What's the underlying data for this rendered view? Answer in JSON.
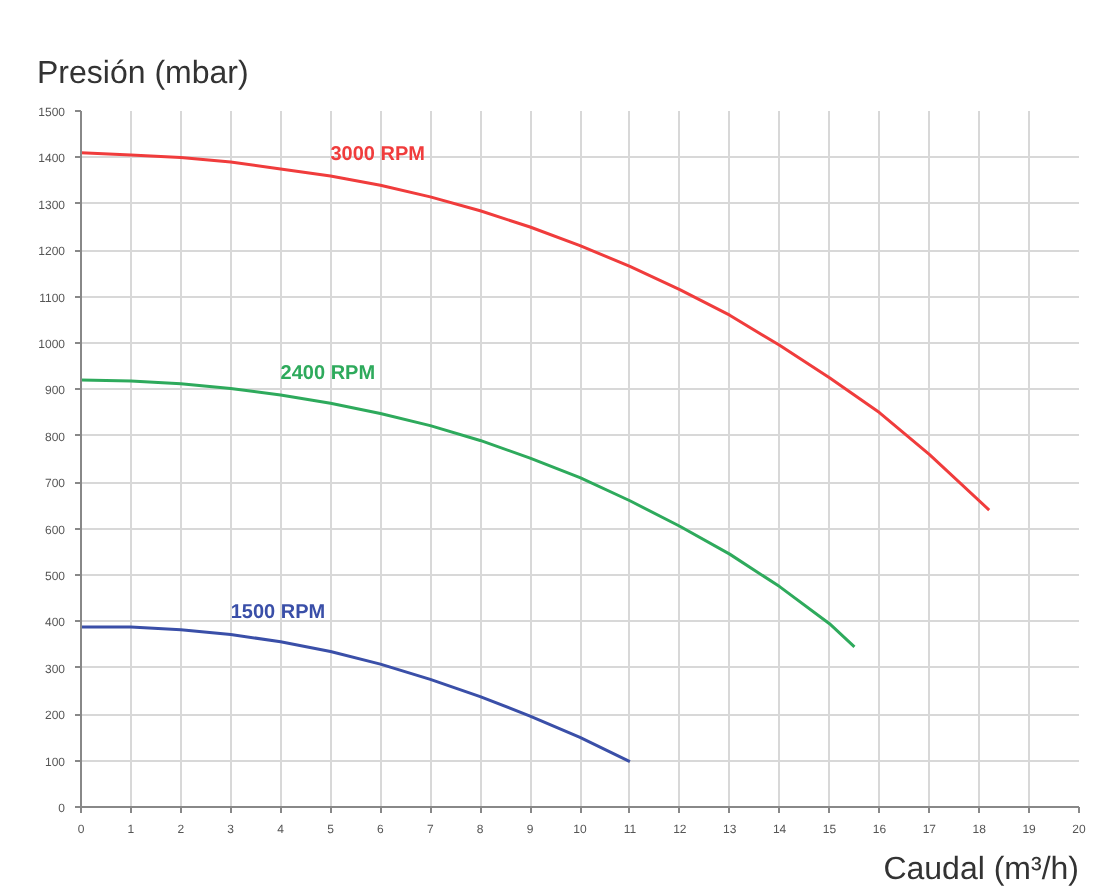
{
  "chart_data": {
    "type": "line",
    "title": "Presión (mbar)",
    "xlabel": "Caudal (m³/h)",
    "xlim": [
      0,
      20
    ],
    "ylim": [
      0,
      1500
    ],
    "xticks": [
      0,
      1,
      2,
      3,
      4,
      5,
      6,
      7,
      8,
      9,
      10,
      11,
      12,
      13,
      14,
      15,
      16,
      17,
      18,
      19,
      20
    ],
    "yticks": [
      0,
      100,
      200,
      300,
      400,
      500,
      600,
      700,
      800,
      900,
      1000,
      1100,
      1200,
      1300,
      1400,
      1500
    ],
    "grid": true,
    "marker": "none",
    "line_style": "solid",
    "series": [
      {
        "name": "3000 RPM",
        "color": "#f03c3c",
        "x": [
          0,
          1,
          2,
          3,
          4,
          5,
          6,
          7,
          8,
          9,
          10,
          11,
          12,
          13,
          14,
          15,
          16,
          17,
          18.2
        ],
        "values": [
          1410,
          1405,
          1400,
          1390,
          1375,
          1360,
          1340,
          1315,
          1285,
          1250,
          1210,
          1165,
          1115,
          1060,
          995,
          925,
          850,
          760,
          640
        ]
      },
      {
        "name": "2400 RPM",
        "color": "#2eaa5c",
        "x": [
          0,
          1,
          2,
          3,
          4,
          5,
          6,
          7,
          8,
          9,
          10,
          11,
          12,
          13,
          14,
          15,
          15.5
        ],
        "values": [
          920,
          918,
          912,
          902,
          888,
          870,
          848,
          822,
          790,
          752,
          710,
          660,
          605,
          545,
          475,
          395,
          345
        ]
      },
      {
        "name": "1500 RPM",
        "color": "#3a4fa8",
        "x": [
          0,
          1,
          2,
          3,
          4,
          5,
          6,
          7,
          8,
          9,
          10,
          11
        ],
        "values": [
          388,
          388,
          382,
          372,
          356,
          335,
          308,
          275,
          238,
          196,
          150,
          98
        ]
      }
    ]
  }
}
